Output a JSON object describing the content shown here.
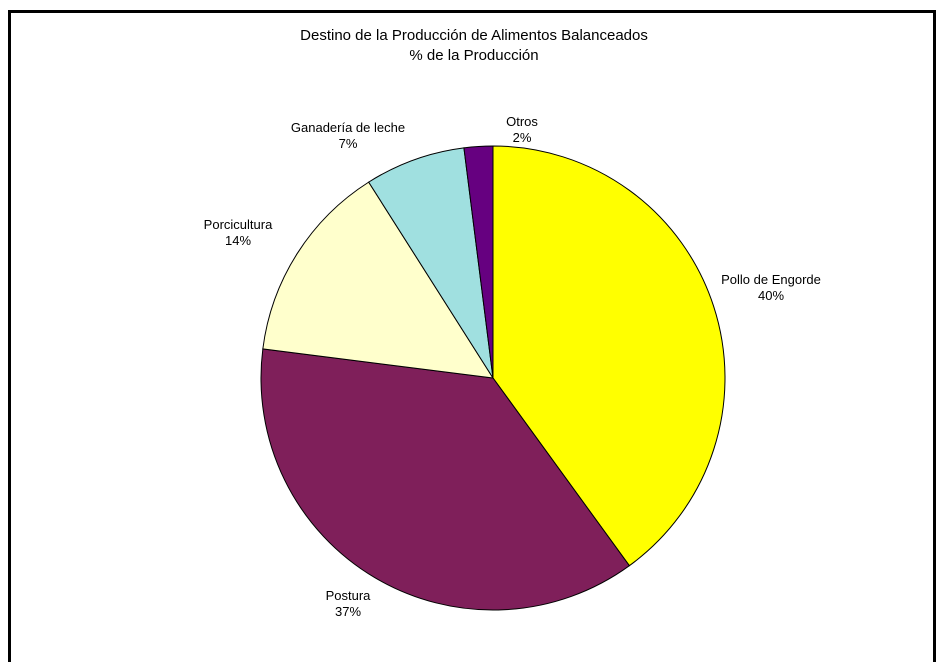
{
  "chart_data": {
    "type": "pie",
    "title": "Destino de la Producción de Alimentos Balanceados",
    "subtitle": "% de la Producción",
    "slices": [
      {
        "label": "Pollo de Engorde",
        "value_label": "40%",
        "value": 40,
        "color": "#FFFF00"
      },
      {
        "label": "Postura",
        "value_label": "37%",
        "value": 37,
        "color": "#7F1F5A"
      },
      {
        "label": "Porcicultura",
        "value_label": "14%",
        "value": 14,
        "color": "#FFFFCC"
      },
      {
        "label": "Ganadería de leche",
        "value_label": "7%",
        "value": 7,
        "color": "#A0E0E0"
      },
      {
        "label": "Otros",
        "value_label": "2%",
        "value": 2,
        "color": "#660080"
      }
    ]
  }
}
